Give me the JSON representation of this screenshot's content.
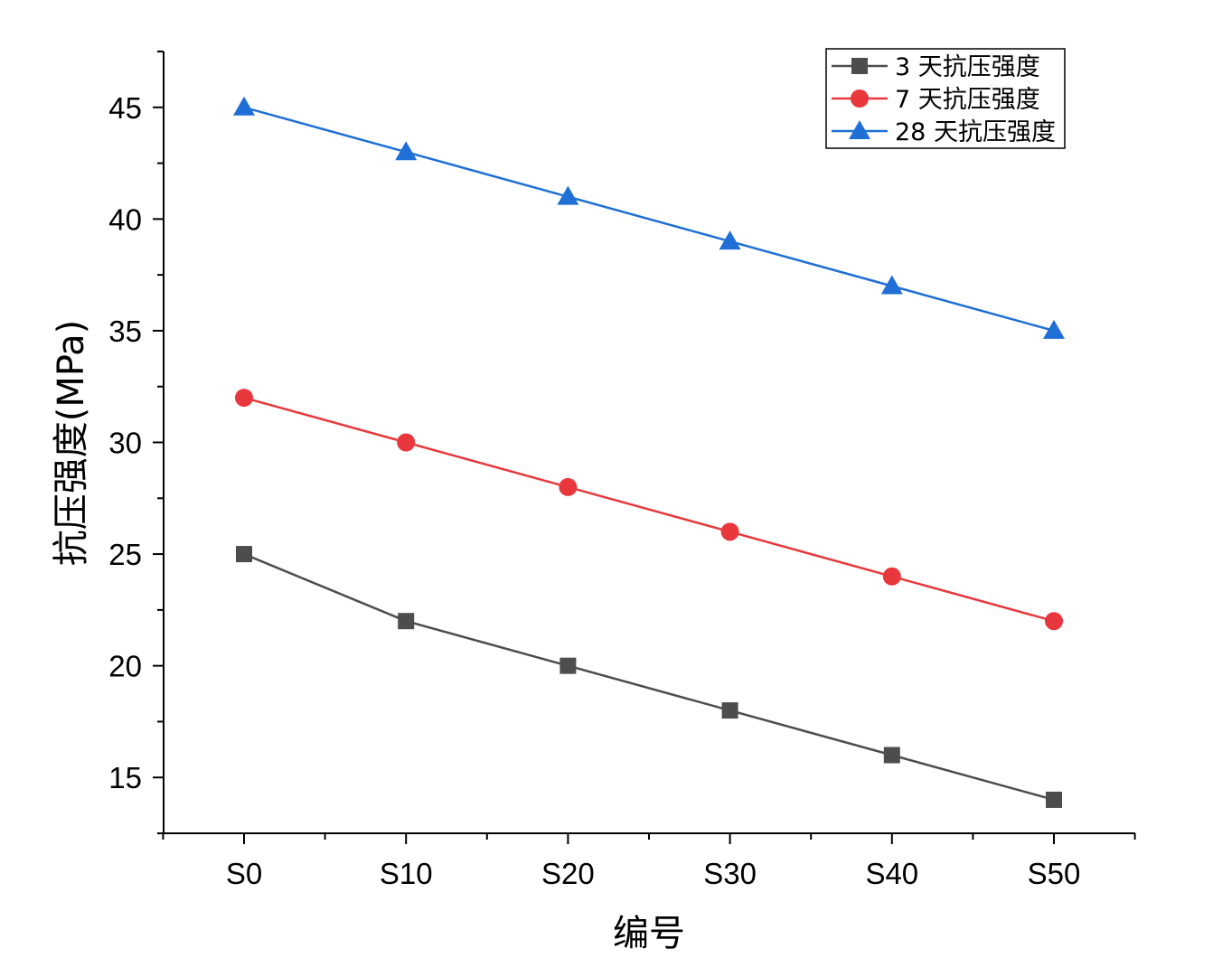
{
  "chart_data": {
    "type": "line",
    "categories": [
      "S0",
      "S10",
      "S20",
      "S30",
      "S40",
      "S50"
    ],
    "series": [
      {
        "name": "3 天抗压强度",
        "values": [
          25,
          22,
          20,
          18,
          16,
          14
        ],
        "color": "#4d4d4d",
        "marker": "square"
      },
      {
        "name": "7 天抗压强度",
        "values": [
          32,
          30,
          28,
          26,
          24,
          22
        ],
        "color": "#e8383d",
        "marker": "circle"
      },
      {
        "name": "28 天抗压强度",
        "values": [
          45,
          43,
          41,
          39,
          37,
          35
        ],
        "color": "#1f6fd6",
        "marker": "triangle"
      }
    ],
    "xlabel": "编号",
    "ylabel": "抗压强度(MPa)",
    "ylim": [
      12.5,
      47.5
    ],
    "yticks": [
      15,
      20,
      25,
      30,
      35,
      40,
      45
    ],
    "ytick_labels": [
      "15",
      "20",
      "25",
      "30",
      "35",
      "40",
      "45"
    ],
    "grid": false,
    "legend_position": "top-right"
  }
}
